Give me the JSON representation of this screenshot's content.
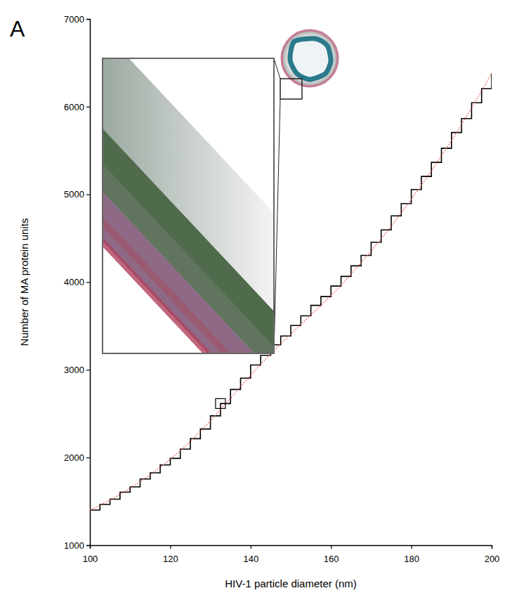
{
  "chart_data": {
    "type": "line",
    "panel_label": "A",
    "x_label": "HIV-1 particle diameter (nm)",
    "y_label": "Number of MA protein units",
    "x": [
      100,
      102.5,
      105,
      107.5,
      110,
      112.5,
      115,
      117.5,
      120,
      122.5,
      125,
      127.5,
      130,
      132.5,
      135,
      137.5,
      140,
      142.5,
      145,
      147.5,
      150,
      152.5,
      155,
      157.5,
      160,
      162.5,
      165,
      167.5,
      170,
      172.5,
      175,
      177.5,
      180,
      182.5,
      185,
      187.5,
      190,
      192.5,
      195,
      197.5,
      200
    ],
    "series": [
      {
        "color": "#000000",
        "line_style": "solid",
        "values": [
          1400,
          1465,
          1525,
          1605,
          1665,
          1755,
          1825,
          1915,
          1990,
          2095,
          2215,
          2325,
          2475,
          2615,
          2775,
          2905,
          3055,
          3165,
          3285,
          3385,
          3505,
          3615,
          3735,
          3835,
          3955,
          4065,
          4185,
          4305,
          4455,
          4595,
          4755,
          4895,
          5055,
          5205,
          5365,
          5525,
          5705,
          5865,
          6045,
          6205,
          6380
        ]
      },
      {
        "color": "#e8534a",
        "line_style": "dotted",
        "values": [
          1400,
          1455,
          1515,
          1580,
          1650,
          1725,
          1805,
          1890,
          1980,
          2080,
          2185,
          2300,
          2420,
          2545,
          2675,
          2805,
          2935,
          3060,
          3180,
          3295,
          3405,
          3515,
          3625,
          3735,
          3845,
          3965,
          4090,
          4220,
          4355,
          4495,
          4640,
          4790,
          4945,
          5105,
          5270,
          5440,
          5615,
          5795,
          5985,
          6180,
          6380
        ]
      }
    ],
    "xlim": [
      100,
      200
    ],
    "xticks": [
      100,
      120,
      140,
      160,
      180,
      200
    ],
    "ylim": [
      1000,
      7000
    ],
    "yticks": [
      1000,
      2000,
      3000,
      4000,
      5000,
      6000,
      7000
    ],
    "grid": false
  }
}
